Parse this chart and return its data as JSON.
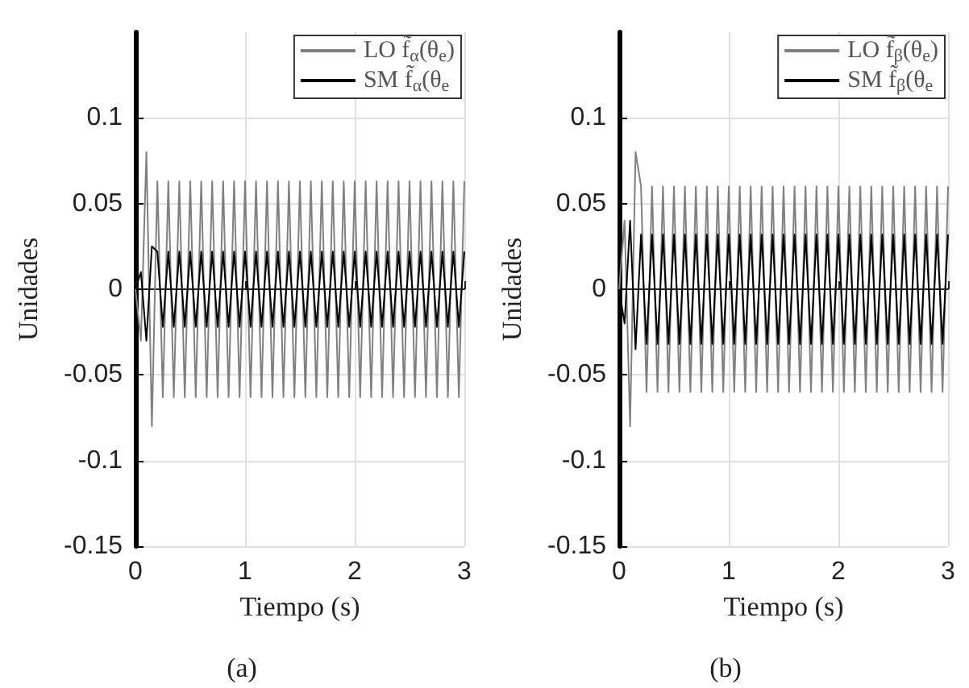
{
  "chart_data": [
    {
      "type": "line",
      "xlabel": "Tiempo (s)",
      "ylabel": "Unidades",
      "annotations": [
        "(a)"
      ],
      "xlim": [
        0,
        3
      ],
      "xticks": [
        0,
        1,
        2,
        3
      ],
      "ylim": [
        -0.15,
        0.15
      ],
      "yticks": [
        -0.15,
        -0.1,
        -0.05,
        0,
        0.05,
        0.1
      ],
      "grid": true,
      "legend": "top right",
      "marker": "none",
      "x": [
        0,
        0.05,
        0.1,
        0.15,
        0.2,
        0.25,
        0.3,
        0.35,
        0.4,
        0.45,
        0.5,
        0.55,
        0.6,
        0.65,
        0.7,
        0.75,
        0.8,
        0.85,
        0.9,
        0.95,
        1,
        1.05,
        1.1,
        1.15,
        1.2,
        1.25,
        1.3,
        1.35,
        1.4,
        1.45,
        1.5,
        1.55,
        1.6,
        1.65,
        1.7,
        1.75,
        1.8,
        1.85,
        1.9,
        1.95,
        2,
        2.05,
        2.1,
        2.15,
        2.2,
        2.25,
        2.3,
        2.35,
        2.4,
        2.45,
        2.5,
        2.55,
        2.6,
        2.65,
        2.7,
        2.75,
        2.8,
        2.85,
        2.9,
        2.95,
        3
      ],
      "series": [
        {
          "name": "LO f̃$_{α}$(θ$_{e}$)",
          "color": "#808080",
          "values": [
            0,
            -0.03,
            0.08,
            -0.08,
            0.063,
            -0.063,
            0.063,
            -0.063,
            0.063,
            -0.063,
            0.063,
            -0.063,
            0.063,
            -0.063,
            0.063,
            -0.063,
            0.063,
            -0.063,
            0.063,
            -0.063,
            0.063,
            -0.063,
            0.063,
            -0.063,
            0.063,
            -0.063,
            0.063,
            -0.063,
            0.063,
            -0.063,
            0.063,
            -0.063,
            0.063,
            -0.063,
            0.063,
            -0.063,
            0.063,
            -0.063,
            0.063,
            -0.063,
            0.063,
            -0.063,
            0.063,
            -0.063,
            0.063,
            -0.063,
            0.063,
            -0.063,
            0.063,
            -0.063,
            0.063,
            -0.063,
            0.063,
            -0.063,
            0.063,
            -0.063,
            0.063,
            -0.063,
            0.063,
            -0.063,
            0.063
          ]
        },
        {
          "name": "SM f̃$_{α}$(θ$_{e}$",
          "color": "#000000",
          "values": [
            0,
            0.01,
            -0.03,
            0.025,
            0.022,
            -0.022,
            0.022,
            -0.022,
            0.022,
            -0.022,
            0.022,
            -0.022,
            0.022,
            -0.022,
            0.022,
            -0.022,
            0.022,
            -0.022,
            0.022,
            -0.022,
            0.022,
            -0.022,
            0.022,
            -0.022,
            0.022,
            -0.022,
            0.022,
            -0.022,
            0.022,
            -0.022,
            0.022,
            -0.022,
            0.022,
            -0.022,
            0.022,
            -0.022,
            0.022,
            -0.022,
            0.022,
            -0.022,
            0.022,
            -0.022,
            0.022,
            -0.022,
            0.022,
            -0.022,
            0.022,
            -0.022,
            0.022,
            -0.022,
            0.022,
            -0.022,
            0.022,
            -0.022,
            0.022,
            -0.022,
            0.022,
            -0.022,
            0.022,
            -0.022,
            0.022
          ]
        }
      ]
    },
    {
      "type": "line",
      "xlabel": "Tiempo (s)",
      "ylabel": "Unidades",
      "annotations": [
        "(b)"
      ],
      "xlim": [
        0,
        3
      ],
      "xticks": [
        0,
        1,
        2,
        3
      ],
      "ylim": [
        -0.15,
        0.15
      ],
      "yticks": [
        -0.15,
        -0.1,
        -0.05,
        0,
        0.05,
        0.1
      ],
      "grid": true,
      "legend": "top right",
      "marker": "none",
      "x": [
        0,
        0.05,
        0.1,
        0.15,
        0.2,
        0.25,
        0.3,
        0.35,
        0.4,
        0.45,
        0.5,
        0.55,
        0.6,
        0.65,
        0.7,
        0.75,
        0.8,
        0.85,
        0.9,
        0.95,
        1,
        1.05,
        1.1,
        1.15,
        1.2,
        1.25,
        1.3,
        1.35,
        1.4,
        1.45,
        1.5,
        1.55,
        1.6,
        1.65,
        1.7,
        1.75,
        1.8,
        1.85,
        1.9,
        1.95,
        2,
        2.05,
        2.1,
        2.15,
        2.2,
        2.25,
        2.3,
        2.35,
        2.4,
        2.45,
        2.5,
        2.55,
        2.6,
        2.65,
        2.7,
        2.75,
        2.8,
        2.85,
        2.9,
        2.95,
        3
      ],
      "series": [
        {
          "name": "LO f̃$_{β}$(θ$_{e}$)",
          "color": "#808080",
          "values": [
            0,
            0.04,
            -0.08,
            0.08,
            0.06,
            -0.06,
            0.06,
            -0.06,
            0.06,
            -0.06,
            0.06,
            -0.06,
            0.06,
            -0.06,
            0.06,
            -0.06,
            0.06,
            -0.06,
            0.06,
            -0.06,
            0.06,
            -0.06,
            0.06,
            -0.06,
            0.06,
            -0.06,
            0.06,
            -0.06,
            0.06,
            -0.06,
            0.06,
            -0.06,
            0.06,
            -0.06,
            0.06,
            -0.06,
            0.06,
            -0.06,
            0.06,
            -0.06,
            0.06,
            -0.06,
            0.06,
            -0.06,
            0.06,
            -0.06,
            0.06,
            -0.06,
            0.06,
            -0.06,
            0.06,
            -0.06,
            0.06,
            -0.06,
            0.06,
            -0.06,
            0.06,
            -0.06,
            0.06,
            -0.06,
            0.06
          ]
        },
        {
          "name": "SM f̃$_{β}$(θ$_{e}$",
          "color": "#000000",
          "values": [
            0,
            -0.02,
            0.04,
            -0.035,
            0.032,
            -0.032,
            0.032,
            -0.032,
            0.032,
            -0.032,
            0.032,
            -0.032,
            0.032,
            -0.032,
            0.032,
            -0.032,
            0.032,
            -0.032,
            0.032,
            -0.032,
            0.032,
            -0.032,
            0.032,
            -0.032,
            0.032,
            -0.032,
            0.032,
            -0.032,
            0.032,
            -0.032,
            0.032,
            -0.032,
            0.032,
            -0.032,
            0.032,
            -0.032,
            0.032,
            -0.032,
            0.032,
            -0.032,
            0.032,
            -0.032,
            0.032,
            -0.032,
            0.032,
            -0.032,
            0.032,
            -0.032,
            0.032,
            -0.032,
            0.032,
            -0.032,
            0.032,
            -0.032,
            0.032,
            -0.032,
            0.032,
            -0.032,
            0.032,
            -0.032,
            0.032
          ]
        }
      ]
    }
  ]
}
